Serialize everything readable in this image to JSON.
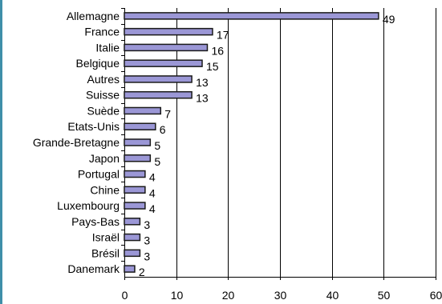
{
  "colors": {
    "bar_fill": "#9b97d6",
    "bar_stroke": "#1a1a1a",
    "grid": "#000000",
    "left_border": "#3f8fa9"
  },
  "chart_data": {
    "type": "bar",
    "orientation": "horizontal",
    "title": "",
    "xlabel": "",
    "ylabel": "",
    "xlim": [
      0,
      60
    ],
    "x_ticks": [
      0,
      10,
      20,
      30,
      40,
      50,
      60
    ],
    "grid": "vertical",
    "legend": "none",
    "categories": [
      "Allemagne",
      "France",
      "Italie",
      "Belgique",
      "Autres",
      "Suisse",
      "Suède",
      "Etats-Unis",
      "Grande-Bretagne",
      "Japon",
      "Portugal",
      "Chine",
      "Luxembourg",
      "Pays-Bas",
      "Israël",
      "Brésil",
      "Danemark"
    ],
    "values": [
      49,
      17,
      16,
      15,
      13,
      13,
      7,
      6,
      5,
      5,
      4,
      4,
      4,
      3,
      3,
      3,
      2
    ]
  }
}
